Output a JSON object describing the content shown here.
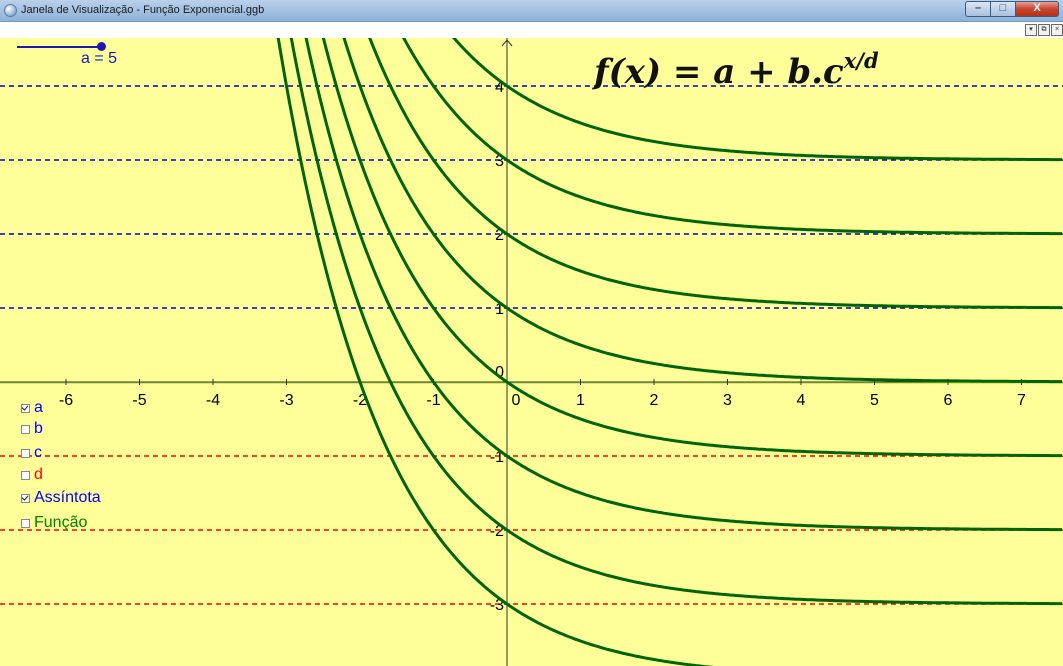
{
  "window": {
    "title": "Janela de Visualização - Função Exponencial.ggb",
    "buttons": {
      "minimize": "–",
      "maximize": "□",
      "close": "X"
    }
  },
  "graphics_view": {
    "mini_buttons": [
      "▾",
      "⧉",
      "×"
    ],
    "formula": {
      "main": "f(x) = a + b.c",
      "exponent": "x/d"
    },
    "slider": {
      "label": "a = 5",
      "value": 5
    },
    "checkboxes": [
      {
        "label": "a",
        "checked": true,
        "color": "#0000ff"
      },
      {
        "label": "b",
        "checked": false,
        "color": "#0000ff"
      },
      {
        "label": "c",
        "checked": false,
        "color": "#0000ff"
      },
      {
        "label": "d",
        "checked": false,
        "color": "#ff0000"
      },
      {
        "label": "Assíntota",
        "checked": true,
        "color": "#0000ff"
      },
      {
        "label": "Função",
        "checked": false,
        "color": "#008000"
      }
    ],
    "x_tick_labels": [
      "-6",
      "-5",
      "-4",
      "-3",
      "-2",
      "-1",
      "0",
      "1",
      "2",
      "3",
      "4",
      "5",
      "6",
      "7"
    ],
    "y_tick_labels": [
      "4",
      "3",
      "2",
      "1",
      "0",
      "-1",
      "-2",
      "-3"
    ]
  },
  "chart_data": {
    "type": "line",
    "xlim": [
      -6.7,
      7.5
    ],
    "ylim": [
      -3.8,
      4.6
    ],
    "function": "y = a + 2^(-x)",
    "series": [
      {
        "values_param_a": 3
      },
      {
        "values_param_a": 2
      },
      {
        "values_param_a": 1
      },
      {
        "values_param_a": 0
      },
      {
        "values_param_a": -1
      },
      {
        "values_param_a": -2
      },
      {
        "values_param_a": -3
      },
      {
        "values_param_a": -4
      }
    ],
    "asymptotes_blue": [
      4,
      3,
      2,
      1
    ],
    "asymptotes_red": [
      -1,
      -2,
      -3
    ],
    "colors": {
      "curve": "#006400",
      "asym_positive": "#0000cc",
      "asym_negative": "#ff0000",
      "background": "#ffff99"
    }
  }
}
